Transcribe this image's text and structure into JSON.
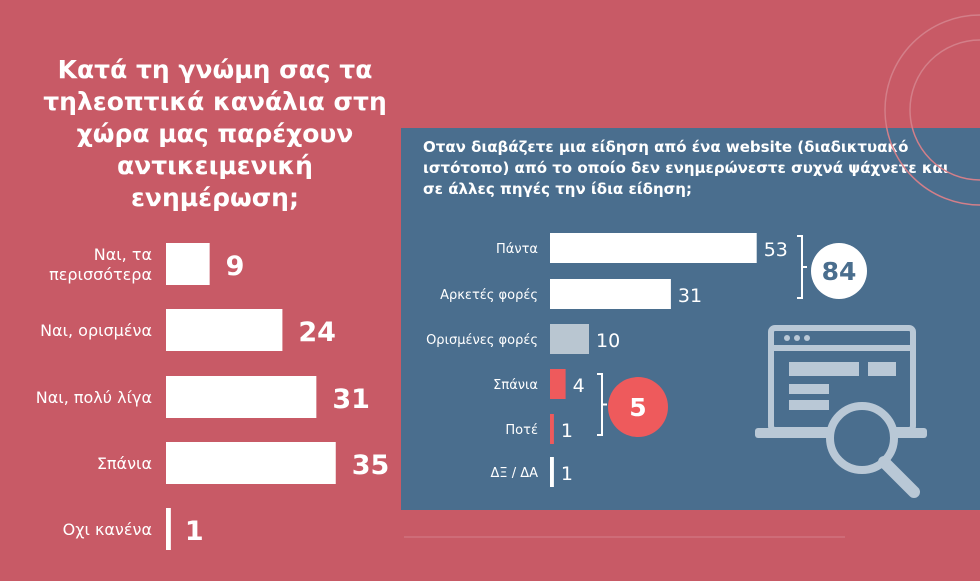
{
  "chart_data": [
    {
      "type": "bar",
      "orientation": "horizontal",
      "title": "Κατά τη γνώμη σας τα τηλεοπτικά κανάλια στη χώρα μας παρέχουν αντικειμενική ενημέρωση;",
      "categories": [
        "Ναι, τα περισσότερα",
        "Ναι, ορισμένα",
        "Ναι, πολύ λίγα",
        "Σπάνια",
        "Οχι κανένα"
      ],
      "category_lines": [
        [
          "Ναι, τα",
          "περισσότερα"
        ],
        [
          "Ναι, ορισμένα"
        ],
        [
          "Ναι, πολύ λίγα"
        ],
        [
          "Σπάνια"
        ],
        [
          "Οχι κανένα"
        ]
      ],
      "values": [
        9,
        24,
        31,
        35,
        1
      ],
      "bar_color": "#ffffff",
      "value_color": "#ffffff"
    },
    {
      "type": "bar",
      "orientation": "horizontal",
      "title": "Οταν διαβάζετε μια είδηση από ένα website (διαδικτυακό ιστότοπο) από το οποίο δεν ενημερώνεστε συχνά ψάχνετε και σε άλλες πηγές την ίδια είδηση;",
      "categories": [
        "Πάντα",
        "Αρκετές φορές",
        "Ορισμένες φορές",
        "Σπάνια",
        "Ποτέ",
        "ΔΞ / ΔΑ"
      ],
      "values": [
        53,
        31,
        10,
        4,
        1,
        1
      ],
      "bar_colors": [
        "#ffffff",
        "#ffffff",
        "#b9c6d1",
        "#ee5a5c",
        "#ee5a5c",
        "#ffffff"
      ],
      "groups": [
        {
          "label": "84",
          "members": [
            0,
            1
          ],
          "circle_color": "#ffffff",
          "text_color": "#4a6e8e"
        },
        {
          "label": "5",
          "members": [
            3,
            4
          ],
          "circle_color": "#ee5a5c",
          "text_color": "#ffffff"
        }
      ]
    }
  ],
  "colors": {
    "background": "#c85a66",
    "panel": "#4a6e8e",
    "accent_red": "#ee5a5c",
    "icon": "#b9c8d6"
  },
  "icons": [
    "browser-window-icon",
    "magnifier-icon"
  ]
}
